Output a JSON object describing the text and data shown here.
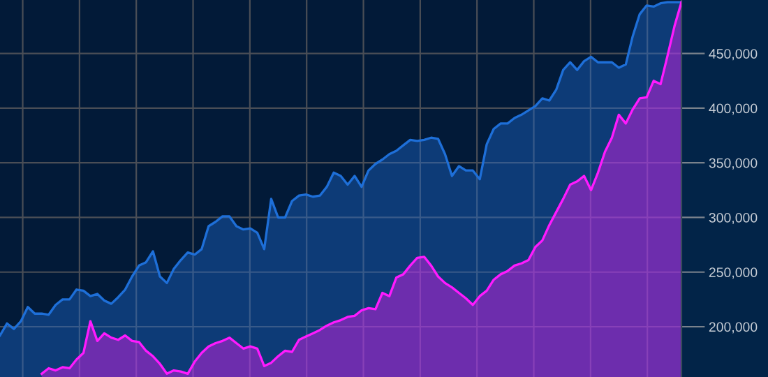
{
  "chart_data": {
    "type": "area",
    "ylim": [
      154000,
      499000
    ],
    "categories": [
      null,
      null,
      null,
      null,
      null,
      null,
      null,
      null,
      null,
      null,
      null,
      null,
      null,
      null,
      null,
      null,
      null,
      null,
      null,
      null,
      null,
      null,
      null,
      null,
      null,
      null,
      null,
      null,
      null,
      null,
      null,
      null,
      null,
      null,
      null,
      null,
      null,
      null,
      null,
      null,
      null,
      null,
      null,
      null,
      null,
      null,
      null,
      null,
      null,
      null,
      null,
      null,
      null,
      null,
      null,
      null,
      null,
      null,
      null,
      null,
      null,
      null,
      null,
      null,
      null,
      null,
      null,
      null,
      null,
      null,
      null,
      null,
      null,
      null,
      null,
      null,
      null,
      null,
      null,
      null,
      null,
      null,
      null,
      null,
      null,
      null,
      null,
      null,
      null,
      null,
      null,
      null,
      null,
      null,
      null,
      null,
      null,
      null,
      null
    ],
    "yticks": [
      {
        "value": 200000,
        "label": "200,000"
      },
      {
        "value": 250000,
        "label": "250,000"
      },
      {
        "value": 300000,
        "label": "300,000"
      },
      {
        "value": 350000,
        "label": "350,000"
      },
      {
        "value": 400000,
        "label": "400,000"
      },
      {
        "value": 450000,
        "label": "450,000"
      }
    ],
    "grid": true,
    "legend": false,
    "series": [
      {
        "color": "#1e6fd8",
        "values": [
          192000,
          203000,
          198000,
          205000,
          218000,
          212000,
          212000,
          211000,
          220000,
          225000,
          225000,
          234000,
          233000,
          228000,
          230000,
          224000,
          221000,
          227000,
          234000,
          246000,
          256000,
          259000,
          269000,
          246000,
          240000,
          253000,
          261000,
          268000,
          266000,
          271000,
          292000,
          296000,
          301000,
          301000,
          292000,
          289000,
          290000,
          286000,
          271000,
          317000,
          300000,
          300000,
          315000,
          320000,
          321000,
          319000,
          320000,
          328000,
          341000,
          338000,
          330000,
          338000,
          328000,
          343000,
          349000,
          353000,
          358000,
          361000,
          366000,
          371000,
          370000,
          371000,
          373000,
          372000,
          358000,
          338000,
          347000,
          343000,
          343000,
          335000,
          367000,
          381000,
          386000,
          386000,
          391000,
          394000,
          398000,
          402000,
          409000,
          407000,
          417000,
          435000,
          442000,
          435000,
          443000,
          447000,
          442000,
          442000,
          442000,
          437000,
          440000,
          466000,
          486000,
          494000,
          493000,
          496000,
          497000,
          497000,
          497000
        ]
      },
      {
        "color": "#ff1aff",
        "values": [
          null,
          null,
          null,
          null,
          null,
          null,
          157000,
          162000,
          160000,
          163000,
          162000,
          170000,
          176000,
          205000,
          187000,
          194000,
          190000,
          188000,
          192000,
          187000,
          186000,
          178000,
          173000,
          166000,
          157000,
          160000,
          159000,
          157000,
          168000,
          176000,
          182000,
          185000,
          187000,
          190000,
          185000,
          180000,
          182000,
          180000,
          164000,
          167000,
          173000,
          178000,
          177000,
          188000,
          191000,
          194000,
          197000,
          201000,
          204000,
          206000,
          209000,
          210000,
          215000,
          217000,
          216000,
          231000,
          228000,
          245000,
          248000,
          256000,
          263000,
          264000,
          256000,
          246000,
          240000,
          236000,
          231000,
          226000,
          220000,
          228000,
          233000,
          243000,
          248000,
          251000,
          256000,
          258000,
          261000,
          273000,
          279000,
          293000,
          305000,
          317000,
          330000,
          333000,
          338000,
          325000,
          341000,
          360000,
          373000,
          394000,
          386000,
          399000,
          409000,
          410000,
          425000,
          422000,
          448000,
          475000,
          497000
        ]
      }
    ]
  }
}
